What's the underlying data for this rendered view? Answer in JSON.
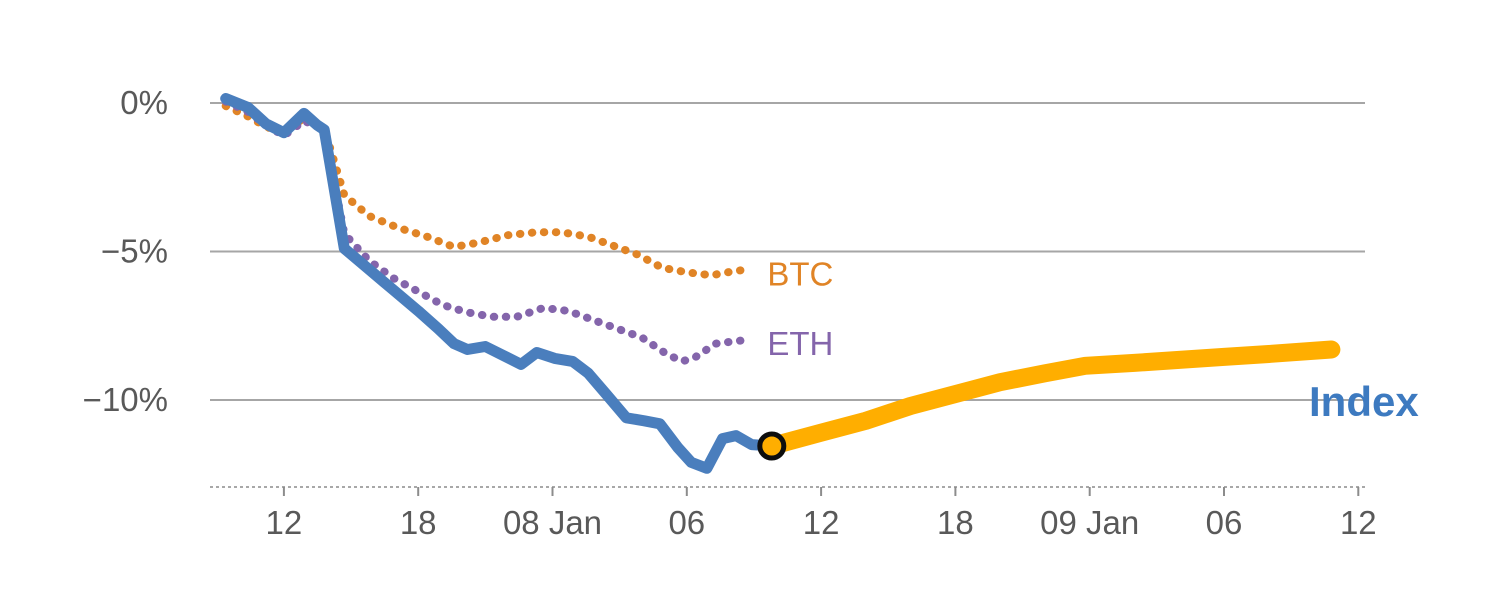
{
  "page": {
    "background": "#ffffff"
  },
  "chart_data": {
    "type": "line",
    "y_axis": {
      "tick_values": [
        0,
        -5,
        -10
      ],
      "tick_labels": [
        "0%",
        "−5%",
        "−10%"
      ],
      "range": [
        -12.9,
        0.55
      ],
      "gridlines": true,
      "unit": "percent"
    },
    "x_axis": {
      "tick_values": [
        12,
        18,
        24,
        30,
        36,
        42,
        48,
        54,
        60
      ],
      "tick_labels": [
        "12",
        "18",
        "08 Jan",
        "06",
        "12",
        "18",
        "09 Jan",
        "06",
        "12"
      ],
      "range": [
        8.7,
        60.3
      ],
      "unit": "hours"
    },
    "series": [
      {
        "name": "BTC",
        "color": "#e08426",
        "line_style": "dotted",
        "line_width": 8,
        "points": [
          [
            9.4,
            -0.1
          ],
          [
            10.4,
            -0.45
          ],
          [
            11.2,
            -0.8
          ],
          [
            12.0,
            -1.0
          ],
          [
            12.9,
            -0.5
          ],
          [
            13.8,
            -0.85
          ],
          [
            14.7,
            -3.1
          ],
          [
            15.8,
            -3.8
          ],
          [
            17.1,
            -4.2
          ],
          [
            18.4,
            -4.5
          ],
          [
            19.6,
            -4.85
          ],
          [
            20.7,
            -4.7
          ],
          [
            22.0,
            -4.45
          ],
          [
            23.3,
            -4.35
          ],
          [
            24.4,
            -4.35
          ],
          [
            25.6,
            -4.5
          ],
          [
            26.7,
            -4.8
          ],
          [
            27.8,
            -5.1
          ],
          [
            28.9,
            -5.55
          ],
          [
            30.0,
            -5.7
          ],
          [
            31.1,
            -5.8
          ],
          [
            32.2,
            -5.65
          ],
          [
            32.9,
            -5.6
          ]
        ]
      },
      {
        "name": "ETH",
        "color": "#8465ab",
        "line_style": "dotted",
        "line_width": 8,
        "points": [
          [
            9.4,
            0.05
          ],
          [
            10.4,
            -0.3
          ],
          [
            11.2,
            -0.75
          ],
          [
            12.0,
            -1.1
          ],
          [
            12.9,
            -0.6
          ],
          [
            13.8,
            -0.9
          ],
          [
            14.7,
            -4.4
          ],
          [
            15.8,
            -5.3
          ],
          [
            16.9,
            -5.9
          ],
          [
            18.0,
            -6.35
          ],
          [
            19.1,
            -6.8
          ],
          [
            20.2,
            -7.05
          ],
          [
            21.3,
            -7.2
          ],
          [
            22.4,
            -7.2
          ],
          [
            23.6,
            -6.9
          ],
          [
            24.7,
            -7.0
          ],
          [
            25.8,
            -7.3
          ],
          [
            26.9,
            -7.6
          ],
          [
            28.0,
            -7.9
          ],
          [
            29.1,
            -8.45
          ],
          [
            29.8,
            -8.7
          ],
          [
            30.4,
            -8.55
          ],
          [
            31.3,
            -8.1
          ],
          [
            32.4,
            -8.0
          ]
        ]
      },
      {
        "name": "Index",
        "color": "#4a7ebd",
        "line_style": "solid",
        "line_width": 11,
        "points": [
          [
            9.4,
            0.15
          ],
          [
            10.4,
            -0.15
          ],
          [
            11.2,
            -0.7
          ],
          [
            12.0,
            -1.0
          ],
          [
            12.9,
            -0.35
          ],
          [
            13.5,
            -0.75
          ],
          [
            13.8,
            -0.9
          ],
          [
            14.7,
            -4.9
          ],
          [
            15.8,
            -5.6
          ],
          [
            16.9,
            -6.3
          ],
          [
            18.0,
            -7.0
          ],
          [
            18.9,
            -7.6
          ],
          [
            19.6,
            -8.1
          ],
          [
            20.2,
            -8.3
          ],
          [
            21.0,
            -8.2
          ],
          [
            21.8,
            -8.5
          ],
          [
            22.6,
            -8.8
          ],
          [
            23.3,
            -8.4
          ],
          [
            24.1,
            -8.6
          ],
          [
            24.9,
            -8.7
          ],
          [
            25.6,
            -9.1
          ],
          [
            26.4,
            -9.8
          ],
          [
            27.3,
            -10.6
          ],
          [
            28.1,
            -10.7
          ],
          [
            28.8,
            -10.8
          ],
          [
            29.6,
            -11.6
          ],
          [
            30.2,
            -12.1
          ],
          [
            30.9,
            -12.3
          ],
          [
            31.6,
            -11.3
          ],
          [
            32.2,
            -11.2
          ],
          [
            32.9,
            -11.5
          ],
          [
            33.8,
            -11.55
          ]
        ]
      },
      {
        "name": "Index-projection",
        "color": "#ffae00",
        "line_style": "solid",
        "line_width": 18,
        "points": [
          [
            33.8,
            -11.55
          ],
          [
            36.0,
            -11.1
          ],
          [
            38.0,
            -10.7
          ],
          [
            40.0,
            -10.2
          ],
          [
            42.0,
            -9.8
          ],
          [
            44.0,
            -9.4
          ],
          [
            46.0,
            -9.1
          ],
          [
            47.8,
            -8.85
          ],
          [
            50.0,
            -8.75
          ],
          [
            52.0,
            -8.65
          ],
          [
            54.0,
            -8.55
          ],
          [
            56.0,
            -8.45
          ],
          [
            58.8,
            -8.3
          ]
        ]
      }
    ],
    "marker": {
      "x": 33.8,
      "y": -11.55,
      "radius": 12,
      "fill": "#ffae00",
      "ring_color": "#0d0d0d",
      "ring_width": 5
    },
    "annotations": [
      {
        "text": "BTC",
        "x": 33.6,
        "y": -5.75,
        "color": "#e08426",
        "font_size": 33,
        "font_weight": "normal"
      },
      {
        "text": "ETH",
        "x": 33.6,
        "y": -8.1,
        "color": "#8465ab",
        "font_size": 33,
        "font_weight": "normal"
      },
      {
        "text": "Index",
        "x": 57.8,
        "y": -10.05,
        "color": "#3d7ac0",
        "font_size": 42,
        "font_weight": "bold"
      }
    ],
    "colors": {
      "grid": "#a6a6a6",
      "axis": "#8c8c8c",
      "tick_text": "#595959"
    }
  }
}
